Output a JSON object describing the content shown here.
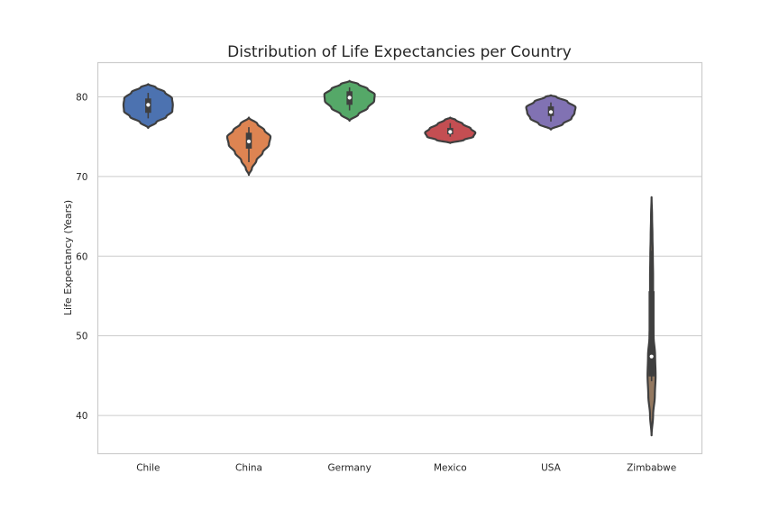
{
  "chart_data": {
    "type": "violin",
    "title": "Distribution of Life Expectancies per Country",
    "xlabel": "",
    "ylabel": "Life Expectancy (Years)",
    "ylim": [
      35.2,
      84.3
    ],
    "yticks": [
      40,
      50,
      60,
      70,
      80
    ],
    "grid": true,
    "categories": [
      "Chile",
      "China",
      "Germany",
      "Mexico",
      "USA",
      "Zimbabwe"
    ],
    "colors": [
      "#4c72b0",
      "#dd8452",
      "#55a868",
      "#c44e52",
      "#8172b3",
      "#937860"
    ],
    "series": [
      {
        "category": "Chile",
        "min": 77.3,
        "q1": 78.0,
        "median": 79.0,
        "q3": 79.8,
        "max": 80.5,
        "density": [
          [
            76.1,
            0.0
          ],
          [
            76.8,
            0.32
          ],
          [
            77.5,
            0.72
          ],
          [
            78.2,
            0.96
          ],
          [
            79.0,
            0.98
          ],
          [
            79.8,
            0.95
          ],
          [
            80.6,
            0.66
          ],
          [
            81.2,
            0.3
          ],
          [
            81.6,
            0.0
          ]
        ]
      },
      {
        "category": "China",
        "min": 71.8,
        "q1": 73.5,
        "median": 74.4,
        "q3": 75.5,
        "max": 76.2,
        "density": [
          [
            70.2,
            0.0
          ],
          [
            71.0,
            0.12
          ],
          [
            72.0,
            0.3
          ],
          [
            73.0,
            0.55
          ],
          [
            74.0,
            0.8
          ],
          [
            75.0,
            0.86
          ],
          [
            75.8,
            0.62
          ],
          [
            76.6,
            0.34
          ],
          [
            77.4,
            0.0
          ]
        ]
      },
      {
        "category": "Germany",
        "min": 78.3,
        "q1": 79.0,
        "median": 79.9,
        "q3": 80.7,
        "max": 81.2,
        "density": [
          [
            77.0,
            0.0
          ],
          [
            77.8,
            0.35
          ],
          [
            78.6,
            0.72
          ],
          [
            79.5,
            0.98
          ],
          [
            80.3,
            1.0
          ],
          [
            81.0,
            0.72
          ],
          [
            81.6,
            0.35
          ],
          [
            82.0,
            0.0
          ]
        ]
      },
      {
        "category": "Mexico",
        "min": 75.0,
        "q1": 75.3,
        "median": 75.6,
        "q3": 76.1,
        "max": 76.7,
        "density": [
          [
            74.2,
            0.0
          ],
          [
            74.6,
            0.55
          ],
          [
            75.0,
            0.92
          ],
          [
            75.5,
            1.0
          ],
          [
            76.0,
            0.82
          ],
          [
            76.6,
            0.5
          ],
          [
            77.1,
            0.22
          ],
          [
            77.4,
            0.0
          ]
        ]
      },
      {
        "category": "USA",
        "min": 76.9,
        "q1": 77.6,
        "median": 78.1,
        "q3": 78.8,
        "max": 79.3,
        "density": [
          [
            75.9,
            0.0
          ],
          [
            76.6,
            0.48
          ],
          [
            77.3,
            0.82
          ],
          [
            78.0,
            0.94
          ],
          [
            78.7,
            0.98
          ],
          [
            79.4,
            0.66
          ],
          [
            80.0,
            0.22
          ],
          [
            80.2,
            0.0
          ]
        ]
      },
      {
        "category": "Zimbabwe",
        "min": 44.3,
        "q1": 44.9,
        "median": 47.4,
        "q3": 55.6,
        "max": 60.7,
        "density": [
          [
            37.5,
            0.0
          ],
          [
            40.0,
            0.06
          ],
          [
            42.5,
            0.13
          ],
          [
            45.0,
            0.16
          ],
          [
            47.5,
            0.14
          ],
          [
            50.0,
            0.08
          ],
          [
            52.5,
            0.05
          ],
          [
            55.0,
            0.06
          ],
          [
            57.5,
            0.06
          ],
          [
            60.0,
            0.05
          ],
          [
            62.5,
            0.035
          ],
          [
            65.0,
            0.02
          ],
          [
            67.4,
            0.0
          ]
        ]
      }
    ]
  }
}
